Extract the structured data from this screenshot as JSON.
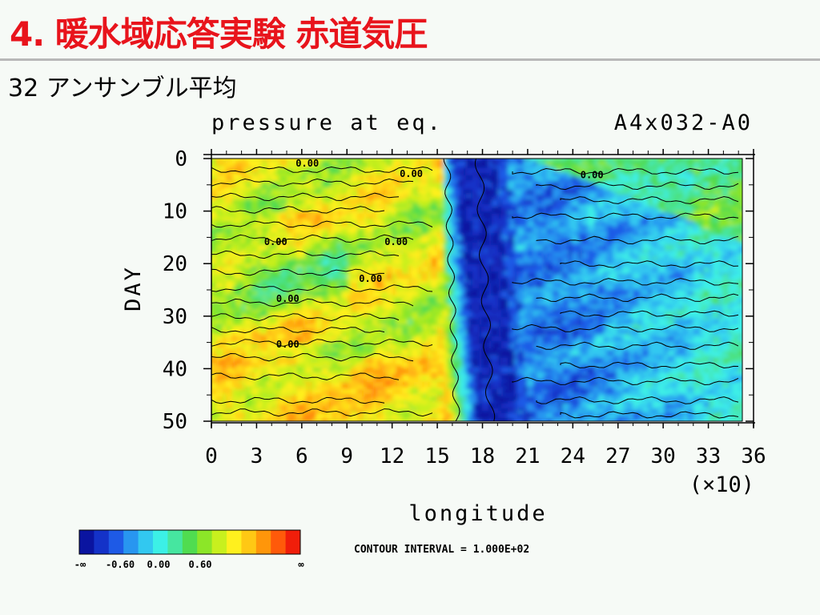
{
  "slide": {
    "title": "4. 暖水域応答実験 赤道気圧",
    "subtitle": "32 アンサンブル平均"
  },
  "chart_data": {
    "type": "heatmap",
    "title": "pressure at eq.",
    "run_id": "A4x032-A0",
    "xlabel": "longitude",
    "x_multiplier": "(×10)",
    "ylabel": "DAY",
    "xlim": [
      0,
      36
    ],
    "ylim": [
      0,
      50
    ],
    "y_inverted": true,
    "x_ticks": [
      "0",
      "3",
      "6",
      "9",
      "12",
      "15",
      "18",
      "21",
      "24",
      "27",
      "30",
      "33",
      "36"
    ],
    "y_ticks": [
      "0",
      "10",
      "20",
      "30",
      "40",
      "50"
    ],
    "contour_interval_text": "CONTOUR INTERVAL = 1.000E+02",
    "contour_labels": [
      "0.00",
      "0.00",
      "0.00",
      "0.00",
      "0.00",
      "0.00",
      "0.00",
      "0.00"
    ],
    "colorbar": {
      "colors": [
        "#0a14a0",
        "#1432c8",
        "#1e5ae6",
        "#2896f0",
        "#32c8f0",
        "#3cf0e6",
        "#46e6a0",
        "#50dc50",
        "#8ce628",
        "#c8f01e",
        "#fff01e",
        "#ffc814",
        "#ff960a",
        "#ff5a0a",
        "#f01e0a"
      ],
      "tick_labels": [
        "-∞",
        "-0.60",
        "0.00",
        "0.60",
        "∞"
      ]
    },
    "pattern_notes": "Strong negative anomaly band centred near longitude 17-19 (x10) for all days; weaker negative anomalies spreading eastward from ~day 5; weak positive anomalies west of longitude 15."
  }
}
